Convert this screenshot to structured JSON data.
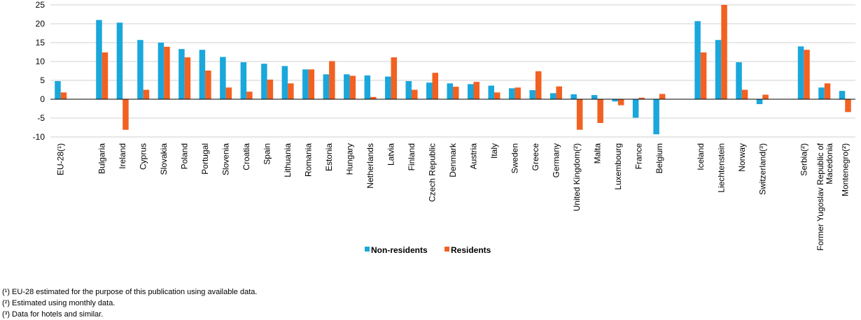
{
  "chart_data": {
    "type": "bar",
    "ylim": [
      -10,
      25
    ],
    "yticks": [
      -10,
      -5,
      0,
      5,
      10,
      15,
      20,
      25
    ],
    "grid": true,
    "legend_position": "bottom-center",
    "categories": [
      "EU-28(¹)",
      "",
      "Bulgaria",
      "Ireland",
      "Cyprus",
      "Slovakia",
      "Poland",
      "Portugal",
      "Slovenia",
      "Croatia",
      "Spain",
      "Lithuania",
      "Romania",
      "Estonia",
      "Hungary",
      "Netherlands",
      "Latvia",
      "Finland",
      "Czech Republic",
      "Denmark",
      "Austria",
      "Italy",
      "Sweden",
      "Greece",
      "Germany",
      "United Kingdom(²)",
      "Malta",
      "Luxembourg",
      "France",
      "Belgium",
      "",
      "Iceland",
      "Liechtenstein",
      "Norway",
      "Switzerland(³)",
      "",
      "Serbia(²)",
      "Former Yugoslav Republic of Macedonia",
      "Montenegro(²)"
    ],
    "series": [
      {
        "name": "Non-residents",
        "color": "#1aa7dc",
        "values": [
          4.8,
          null,
          21.0,
          20.3,
          15.7,
          15.0,
          13.3,
          13.1,
          11.2,
          9.8,
          9.4,
          8.8,
          7.9,
          6.6,
          6.6,
          6.3,
          6.0,
          4.8,
          4.4,
          4.2,
          4.0,
          3.6,
          2.9,
          2.4,
          1.6,
          1.3,
          1.1,
          -0.6,
          -4.9,
          -9.3,
          null,
          20.7,
          15.7,
          9.8,
          -1.3,
          null,
          14.0,
          3.1,
          2.2
        ]
      },
      {
        "name": "Residents",
        "color": "#f26122",
        "values": [
          1.8,
          null,
          12.4,
          -8.1,
          2.5,
          13.9,
          11.1,
          7.6,
          3.1,
          2.0,
          5.2,
          4.2,
          7.9,
          10.1,
          6.2,
          0.6,
          11.1,
          2.5,
          7.0,
          3.3,
          4.6,
          1.8,
          3.1,
          7.4,
          3.4,
          -8.1,
          -6.3,
          -1.6,
          0.4,
          1.4,
          null,
          12.4,
          25.0,
          2.5,
          1.2,
          null,
          13.1,
          4.2,
          -3.4
        ]
      }
    ]
  },
  "footnotes": [
    "(¹) EU-28 estimated for the purpose of this publication using available data.",
    "(²) Estimated using monthly data.",
    "(³) Data for hotels and similar."
  ]
}
